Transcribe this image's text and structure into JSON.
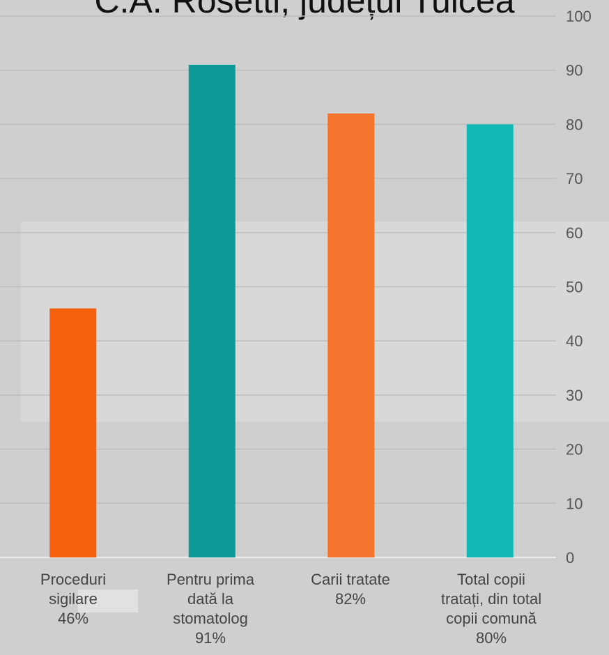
{
  "chart_data": {
    "type": "bar",
    "title": "C.A. Rosetti, județul Tulcea",
    "categories": [
      [
        "Proceduri",
        "sigilare",
        "46%"
      ],
      [
        "Pentru prima",
        "dată la",
        "stomatolog",
        "91%"
      ],
      [
        "Carii tratate",
        "82%"
      ],
      [
        "Total copii",
        "tratați, din total",
        "copii comună",
        "80%"
      ]
    ],
    "values": [
      46,
      91,
      82,
      80
    ],
    "bar_colors": [
      "#f6610d",
      "#0e9a99",
      "#f5742e",
      "#10b9b6"
    ],
    "ylim": [
      0,
      100
    ],
    "yticks": [
      0,
      10,
      20,
      30,
      40,
      50,
      60,
      70,
      80,
      90,
      100
    ],
    "grid": true,
    "y_axis_side": "right"
  }
}
